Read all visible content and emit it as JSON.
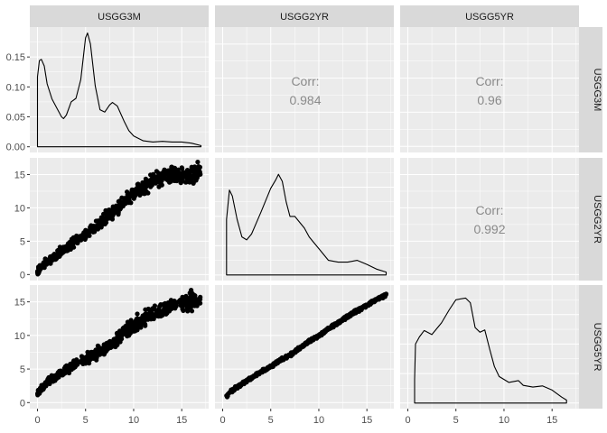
{
  "chart_data": {
    "type": "scatter-matrix",
    "variables": [
      "USGG3M",
      "USGG2YR",
      "USGG5YR"
    ],
    "panel_background": "#ebebeb",
    "strip_background": "#d9d9d9",
    "grid_color": "#ffffff",
    "mark_color": "#000000",
    "corr_color": "#8a8a8a",
    "x_ticks": [
      0,
      5,
      10,
      15
    ],
    "x_range": [
      -0.8,
      17.8
    ],
    "y_ticks_scatter": [
      0,
      5,
      10,
      15
    ],
    "y_range_scatter": [
      -0.9,
      17.5
    ],
    "density_y_ticks": [
      "0.00",
      "0.05",
      "0.10",
      "0.15"
    ],
    "density_y_range": [
      -0.0095,
      0.2
    ],
    "correlations": [
      {
        "row": "USGG3M",
        "col": "USGG2YR",
        "label": "Corr:",
        "value": "0.984"
      },
      {
        "row": "USGG3M",
        "col": "USGG5YR",
        "label": "Corr:",
        "value": "0.96"
      },
      {
        "row": "USGG2YR",
        "col": "USGG5YR",
        "label": "Corr:",
        "value": "0.992"
      }
    ],
    "densities": [
      {
        "variable": "USGG3M",
        "points": [
          [
            0.0,
            0.117
          ],
          [
            0.2,
            0.144
          ],
          [
            0.4,
            0.146
          ],
          [
            0.7,
            0.135
          ],
          [
            1.0,
            0.105
          ],
          [
            1.5,
            0.08
          ],
          [
            2.0,
            0.065
          ],
          [
            2.5,
            0.05
          ],
          [
            2.7,
            0.047
          ],
          [
            3.0,
            0.053
          ],
          [
            3.5,
            0.075
          ],
          [
            4.0,
            0.081
          ],
          [
            4.5,
            0.112
          ],
          [
            5.0,
            0.182
          ],
          [
            5.2,
            0.19
          ],
          [
            5.5,
            0.172
          ],
          [
            6.0,
            0.102
          ],
          [
            6.5,
            0.062
          ],
          [
            7.0,
            0.058
          ],
          [
            7.5,
            0.07
          ],
          [
            7.8,
            0.074
          ],
          [
            8.3,
            0.068
          ],
          [
            9.0,
            0.043
          ],
          [
            9.5,
            0.027
          ],
          [
            10.0,
            0.018
          ],
          [
            11.0,
            0.01
          ],
          [
            12.0,
            0.008
          ],
          [
            13.0,
            0.009
          ],
          [
            14.0,
            0.008
          ],
          [
            15.0,
            0.008
          ],
          [
            16.0,
            0.006
          ],
          [
            17.0,
            0.002
          ]
        ]
      },
      {
        "variable": "USGG2YR",
        "points": [
          [
            0.4,
            0.095
          ],
          [
            0.7,
            0.145
          ],
          [
            1.0,
            0.135
          ],
          [
            1.5,
            0.095
          ],
          [
            2.0,
            0.065
          ],
          [
            2.5,
            0.06
          ],
          [
            3.0,
            0.07
          ],
          [
            4.0,
            0.108
          ],
          [
            5.0,
            0.148
          ],
          [
            5.5,
            0.162
          ],
          [
            5.8,
            0.172
          ],
          [
            6.2,
            0.16
          ],
          [
            6.6,
            0.125
          ],
          [
            7.0,
            0.1
          ],
          [
            7.5,
            0.1
          ],
          [
            8.0,
            0.09
          ],
          [
            8.5,
            0.08
          ],
          [
            9.0,
            0.065
          ],
          [
            9.5,
            0.055
          ],
          [
            10.0,
            0.045
          ],
          [
            11.0,
            0.025
          ],
          [
            12.0,
            0.022
          ],
          [
            13.0,
            0.022
          ],
          [
            14.0,
            0.025
          ],
          [
            15.0,
            0.018
          ],
          [
            16.0,
            0.01
          ],
          [
            17.0,
            0.005
          ]
        ]
      },
      {
        "variable": "USGG5YR",
        "points": [
          [
            0.7,
            0.04
          ],
          [
            0.8,
            0.1
          ],
          [
            1.2,
            0.112
          ],
          [
            1.7,
            0.123
          ],
          [
            2.5,
            0.116
          ],
          [
            3.5,
            0.136
          ],
          [
            4.3,
            0.158
          ],
          [
            5.0,
            0.175
          ],
          [
            6.0,
            0.178
          ],
          [
            6.5,
            0.17
          ],
          [
            7.0,
            0.128
          ],
          [
            7.5,
            0.12
          ],
          [
            8.0,
            0.124
          ],
          [
            8.5,
            0.092
          ],
          [
            9.0,
            0.062
          ],
          [
            9.5,
            0.045
          ],
          [
            10.5,
            0.035
          ],
          [
            11.5,
            0.038
          ],
          [
            12.0,
            0.03
          ],
          [
            13.0,
            0.027
          ],
          [
            14.0,
            0.029
          ],
          [
            15.0,
            0.022
          ],
          [
            16.0,
            0.01
          ],
          [
            16.5,
            0.005
          ]
        ]
      }
    ],
    "scatter_pairs": [
      {
        "x_var": "USGG3M",
        "y_var": "USGG2YR",
        "trend": [
          [
            0.0,
            0.5
          ],
          [
            1.0,
            2.0
          ],
          [
            2.0,
            3.0
          ],
          [
            3.0,
            4.0
          ],
          [
            4.0,
            5.0
          ],
          [
            5.0,
            6.0
          ],
          [
            6.0,
            7.0
          ],
          [
            7.0,
            8.5
          ],
          [
            8.0,
            9.5
          ],
          [
            9.0,
            11.0
          ],
          [
            10.0,
            12.0
          ],
          [
            11.0,
            13.0
          ],
          [
            12.0,
            14.0
          ],
          [
            13.0,
            14.5
          ],
          [
            14.0,
            15.0
          ],
          [
            15.0,
            14.5
          ],
          [
            16.0,
            15.0
          ],
          [
            17.0,
            15.7
          ]
        ]
      },
      {
        "x_var": "USGG3M",
        "y_var": "USGG5YR",
        "trend": [
          [
            0.0,
            1.3
          ],
          [
            1.0,
            3.0
          ],
          [
            2.0,
            4.0
          ],
          [
            3.0,
            5.0
          ],
          [
            4.0,
            5.8
          ],
          [
            5.0,
            6.4
          ],
          [
            6.0,
            7.2
          ],
          [
            7.0,
            8.0
          ],
          [
            8.0,
            9.0
          ],
          [
            9.0,
            10.5
          ],
          [
            10.0,
            11.5
          ],
          [
            11.0,
            12.5
          ],
          [
            12.0,
            13.3
          ],
          [
            13.0,
            13.8
          ],
          [
            14.0,
            14.5
          ],
          [
            15.0,
            14.8
          ],
          [
            16.0,
            15.3
          ],
          [
            17.0,
            15.3
          ]
        ]
      },
      {
        "x_var": "USGG2YR",
        "y_var": "USGG5YR",
        "trend": [
          [
            0.4,
            1.0
          ],
          [
            1.0,
            1.8
          ],
          [
            2.0,
            2.8
          ],
          [
            3.0,
            3.7
          ],
          [
            4.0,
            4.6
          ],
          [
            5.0,
            5.4
          ],
          [
            6.0,
            6.3
          ],
          [
            7.0,
            7.1
          ],
          [
            8.0,
            8.1
          ],
          [
            9.0,
            9.1
          ],
          [
            10.0,
            10.0
          ],
          [
            11.0,
            11.0
          ],
          [
            12.0,
            11.9
          ],
          [
            13.0,
            12.8
          ],
          [
            14.0,
            13.7
          ],
          [
            15.0,
            14.5
          ],
          [
            16.0,
            15.4
          ],
          [
            17.0,
            16.1
          ]
        ]
      }
    ]
  }
}
